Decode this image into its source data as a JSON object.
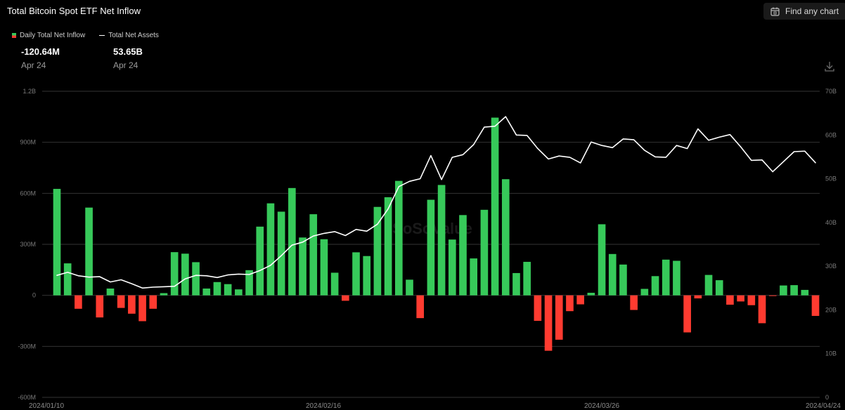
{
  "header": {
    "title": "Total Bitcoin Spot ETF Net Inflow",
    "find_chart_label": "Find any chart",
    "find_chart_icon": "calendar-icon"
  },
  "legend": {
    "bar_label": "Daily Total Net Inflow",
    "line_label": "Total Net Assets"
  },
  "stats": {
    "inflow_value": "-120.64M",
    "inflow_date": "Apr 24",
    "assets_value": "53.65B",
    "assets_date": "Apr 24"
  },
  "watermark": "SoSoValue",
  "colors": {
    "positive": "#37c95a",
    "negative": "#ff3b30",
    "line": "#ffffff",
    "grid": "#333333",
    "axis_text": "#7a7a7a"
  },
  "chart_data": {
    "type": "bar",
    "title": "Total Bitcoin Spot ETF Net Inflow",
    "y_left": {
      "range": [
        -600,
        1200
      ],
      "unit": "M",
      "ticks": [
        "-600M",
        "-300M",
        "0",
        "300M",
        "600M",
        "900M",
        "1.2B"
      ]
    },
    "y_right": {
      "range": [
        0,
        70
      ],
      "unit": "B",
      "ticks": [
        "0",
        "10B",
        "20B",
        "30B",
        "40B",
        "50B",
        "60B",
        "70B"
      ]
    },
    "x_ticks": [
      "2024/01/10",
      "2024/02/16",
      "2024/03/26",
      "2024/04/24"
    ],
    "series": [
      {
        "name": "Daily Total Net Inflow",
        "kind": "bar",
        "values": [
          626,
          188,
          -79,
          516,
          -130,
          40,
          -74,
          -108,
          -152,
          -79,
          13,
          254,
          245,
          195,
          40,
          78,
          66,
          35,
          148,
          404,
          541,
          492,
          631,
          340,
          477,
          330,
          133,
          -32,
          253,
          231,
          520,
          577,
          673,
          92,
          -134,
          562,
          649,
          328,
          472,
          217,
          503,
          1045,
          683,
          131,
          197,
          -150,
          -326,
          -261,
          -93,
          -53,
          15,
          418,
          243,
          181,
          -86,
          38,
          113,
          210,
          203,
          -218,
          -18,
          120,
          89,
          -55,
          -36,
          -58,
          -164,
          -4,
          58,
          60,
          32,
          -121
        ]
      },
      {
        "name": "Total Net Assets",
        "kind": "line",
        "axis": "right",
        "values": [
          27.9,
          28.6,
          27.8,
          27.5,
          27.6,
          26.4,
          26.9,
          26.0,
          25.0,
          25.2,
          25.3,
          25.4,
          27.1,
          27.9,
          27.8,
          27.4,
          28.0,
          28.2,
          28.1,
          29.0,
          30.2,
          32.4,
          34.8,
          35.5,
          36.9,
          37.5,
          37.9,
          37.0,
          38.4,
          38.0,
          39.6,
          43.1,
          48.2,
          49.4,
          50.0,
          55.3,
          49.8,
          54.9,
          55.5,
          57.8,
          61.8,
          62.0,
          64.2,
          60.0,
          59.9,
          56.9,
          54.5,
          55.2,
          54.9,
          53.6,
          58.4,
          57.6,
          57.1,
          59.1,
          58.9,
          56.5,
          55.0,
          54.9,
          57.6,
          56.9,
          61.4,
          58.8,
          59.5,
          60.1,
          57.3,
          54.2,
          54.3,
          51.6,
          53.9,
          56.2,
          56.3,
          53.65
        ]
      }
    ],
    "grid": true,
    "legend_position": "top-left"
  }
}
